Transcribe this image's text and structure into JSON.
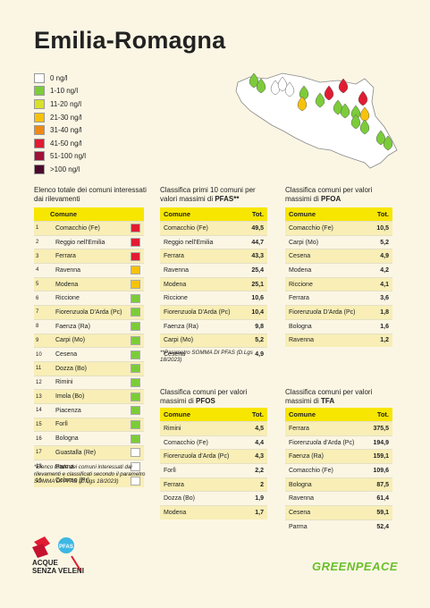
{
  "title": "Emilia-Romagna",
  "legend": [
    {
      "label": "0 ng/l",
      "color": "#ffffff"
    },
    {
      "label": "1-10 ng/l",
      "color": "#7ccc3a"
    },
    {
      "label": "11-20 ng/l",
      "color": "#d8e02a"
    },
    {
      "label": "21-30 ng/l",
      "color": "#f7c20c"
    },
    {
      "label": "31-40 ng/l",
      "color": "#f08a14"
    },
    {
      "label": "41-50 ng/l",
      "color": "#e11b32"
    },
    {
      "label": "51-100 ng/l",
      "color": "#a0123a"
    },
    {
      "label": ">100 ng/l",
      "color": "#4b0a2c"
    }
  ],
  "all_list": {
    "title": "Elenco totale dei comuni interessati dai rilevamenti",
    "header": "Comune",
    "rows": [
      {
        "rank": "1",
        "name": "Comacchio (Fe)",
        "color": "#e11b32"
      },
      {
        "rank": "2",
        "name": "Reggio nell'Emilia",
        "color": "#e11b32"
      },
      {
        "rank": "3",
        "name": "Ferrara",
        "color": "#e11b32"
      },
      {
        "rank": "4",
        "name": "Ravenna",
        "color": "#f7c20c"
      },
      {
        "rank": "5",
        "name": "Modena",
        "color": "#f7c20c"
      },
      {
        "rank": "6",
        "name": "Riccione",
        "color": "#7ccc3a"
      },
      {
        "rank": "7",
        "name": "Fiorenzuola D'Arda (Pc)",
        "color": "#7ccc3a"
      },
      {
        "rank": "8",
        "name": "Faenza (Ra)",
        "color": "#7ccc3a"
      },
      {
        "rank": "9",
        "name": "Carpi (Mo)",
        "color": "#7ccc3a"
      },
      {
        "rank": "10",
        "name": "Cesena",
        "color": "#7ccc3a"
      },
      {
        "rank": "11",
        "name": "Dozza (Bo)",
        "color": "#7ccc3a"
      },
      {
        "rank": "12",
        "name": "Rimini",
        "color": "#7ccc3a"
      },
      {
        "rank": "13",
        "name": "Imola (Bo)",
        "color": "#7ccc3a"
      },
      {
        "rank": "14",
        "name": "Piacenza",
        "color": "#7ccc3a"
      },
      {
        "rank": "15",
        "name": "Forlì",
        "color": "#7ccc3a"
      },
      {
        "rank": "16",
        "name": "Bologna",
        "color": "#7ccc3a"
      },
      {
        "rank": "17",
        "name": "Guastalla (Re)",
        "color": "#ffffff"
      },
      {
        "rank": "18",
        "name": "Parma",
        "color": "#ffffff"
      },
      {
        "rank": "19",
        "name": "Colorno (Pr)",
        "color": "#ffffff"
      }
    ],
    "note": "*Elenco totale dei comuni interessati dai rilevamenti e classificati secondo il parametro SOMMA DI PFAS (D.Lgs 18/2023)"
  },
  "pfas": {
    "title_pre": "Classifica primi 10 comuni per valori massimi di ",
    "title_bold": "PFAS**",
    "col1": "Comune",
    "col2": "Tot.",
    "rows": [
      [
        "Comacchio (Fe)",
        "49,5"
      ],
      [
        "Reggio nell'Emilia",
        "44,7"
      ],
      [
        "Ferrara",
        "43,3"
      ],
      [
        "Ravenna",
        "25,4"
      ],
      [
        "Modena",
        "25,1"
      ],
      [
        "Riccione",
        "10,6"
      ],
      [
        "Fiorenzuola D'Arda (Pc)",
        "10,4"
      ],
      [
        "Faenza (Ra)",
        "9,8"
      ],
      [
        "Carpi (Mo)",
        "5,2"
      ],
      [
        "Cesena",
        "4,9"
      ]
    ],
    "note": "**Parametro SOMMA DI PFAS (D.Lgs 18/2023)"
  },
  "pfoa": {
    "title_pre": "Classifica comuni per valori massimi di ",
    "title_bold": "PFOA",
    "col1": "Comune",
    "col2": "Tot.",
    "rows": [
      [
        "Comacchio (Fe)",
        "10,5"
      ],
      [
        "Carpi (Mo)",
        "5,2"
      ],
      [
        "Cesena",
        "4,9"
      ],
      [
        "Modena",
        "4,2"
      ],
      [
        "Riccione",
        "4,1"
      ],
      [
        "Ferrara",
        "3,6"
      ],
      [
        "Fiorenzuola D'Arda (Pc)",
        "1,8"
      ],
      [
        "Bologna",
        "1,6"
      ],
      [
        "Ravenna",
        "1,2"
      ]
    ]
  },
  "pfos": {
    "title_pre": "Classifica comuni per valori massimi di ",
    "title_bold": "PFOS",
    "col1": "Comune",
    "col2": "Tot.",
    "rows": [
      [
        "Rimini",
        "4,5"
      ],
      [
        "Comacchio (Fe)",
        "4,4"
      ],
      [
        "Fiorenzuola d'Arda (Pc)",
        "4,3"
      ],
      [
        "Forlì",
        "2,2"
      ],
      [
        "Ferrara",
        "2"
      ],
      [
        "Dozza (Bo)",
        "1,9"
      ],
      [
        "Modena",
        "1,7"
      ]
    ]
  },
  "tfa": {
    "title_pre": "Classifica comuni per valori massimi di ",
    "title_bold": "TFA",
    "col1": "Comune",
    "col2": "Tot.",
    "rows": [
      [
        "Ferrara",
        "375,5"
      ],
      [
        "Fiorenzuola d'Arda (Pc)",
        "194,9"
      ],
      [
        "Faenza (Ra)",
        "159,1"
      ],
      [
        "Comacchio (Fe)",
        "109,6"
      ],
      [
        "Bologna",
        "87,5"
      ],
      [
        "Ravenna",
        "61,4"
      ],
      [
        "Cesena",
        "59,1"
      ],
      [
        "Parma",
        "52,4"
      ]
    ]
  },
  "footer": {
    "logo_line1": "ACQUE",
    "logo_line2": "SENZA VELENI",
    "logo_badge": "PFAS",
    "brand": "GREENPEACE"
  }
}
